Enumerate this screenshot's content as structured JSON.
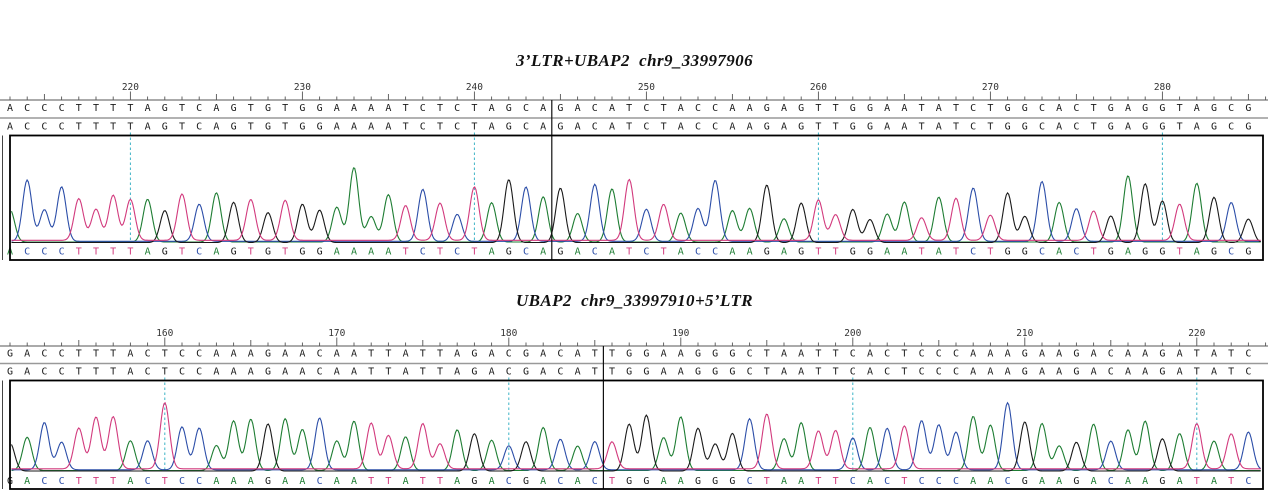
{
  "figure_type": "Sanger sequencing chromatogram alignment, two panels",
  "style": {
    "background": "#ffffff",
    "base_colors": {
      "A": "#1e7d33",
      "C": "#2c4ea8",
      "G": "#1a1a1a",
      "T": "#d23a7d"
    },
    "guide_color": "#3db3c6",
    "ruler_color": "#555555",
    "sequence_text_color": "#1a1a1a",
    "box_border_color": "#000000",
    "divider_color": "#111111"
  },
  "chart_data": [
    {
      "type": "line",
      "subtype": "sanger_chromatogram",
      "title": "3’LTR+UBAP2  chr9_33997906",
      "position_start": 213,
      "axis_tick_labels": [
        220,
        230,
        240,
        250,
        260,
        270,
        280
      ],
      "dotted_guides_at": [
        220,
        240,
        260,
        280
      ],
      "reference_row": "ACCCTTTTAGTCAGTGTGGAAAATCTCTAGCAGACATCTACCAAGAGTTGGAATATCTGGCACTGAGGTAGCG",
      "aligned_row": "ACCCTTTTAGTCAGTGTGGAAAATCTCTAGCAGACATCTACCAAGAGTTGGAATATCTGGCACTGAGGTAGCG",
      "basecall_row": "ACCCTTTTAGTCAGTGTGGAAAATCTCTAGCAGACATCTACCAAGAGTTGGAATATCTGGCACTGAGGTAGCG",
      "junction_before_index": 32,
      "segments": [
        "ACCCTTTTAGTCAGTGTGGAAAATCTCTAGCA",
        "GACATCTACCAAGAGTTGGAATATCTGGCACTGAGGTAGCG"
      ],
      "legend": "peaks colored per base: A green, C blue, G black, T pink"
    },
    {
      "type": "line",
      "subtype": "sanger_chromatogram",
      "title": "UBAP2  chr9_33997910+5’LTR",
      "position_start": 151,
      "axis_tick_labels": [
        160,
        170,
        180,
        190,
        200,
        210,
        220
      ],
      "dotted_guides_at": [
        160,
        180,
        200,
        220
      ],
      "reference_row": "GACCTTTACTCCAAAGAACAATTATTAGACGACATTGGAAGGGCTAATTCACTCCCAAAGAAGACAAGATATC",
      "aligned_row": "GACCTTTACTCCAAAGAACAATTATTAGACGACATTGGAAGGGCTAATTCACTCCCAAAGAAGACAAGATATC",
      "basecall_row": "GACCTTTACTCCAAAGAACAATTATTAGACGACACTGGAAGGGCTAATTCACTCCCAACGAAGACAAGATATC",
      "junction_before_index": 35,
      "segments": [
        "GACCTTTACTCCAAAGAACAATTATTAGACGACAT",
        "TGGAAGGGCTAATTCACTCCCAAAGAAGACAAGATATC"
      ],
      "legend": "peaks colored per base: A green, C blue, G black, T pink"
    }
  ]
}
